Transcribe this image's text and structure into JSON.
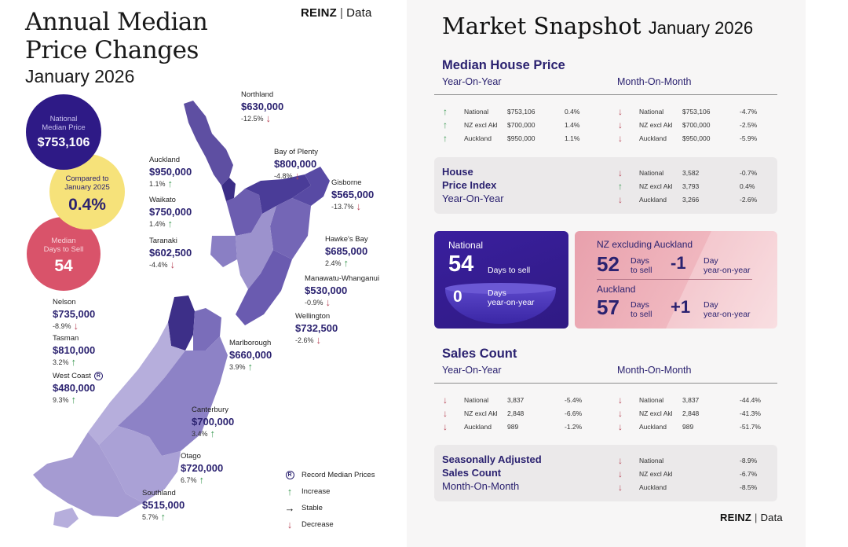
{
  "left": {
    "title_line1": "Annual Median",
    "title_line2": "Price Changes",
    "title_date": "January 2026",
    "brand": {
      "name": "REINZ",
      "sep": "|",
      "suffix": "Data"
    },
    "circles": {
      "national": {
        "label1": "National",
        "label2": "Median Price",
        "value": "$753,106",
        "color": "#2e1a86"
      },
      "compared": {
        "label1": "Compared to",
        "label2": "January 2025",
        "value": "0.4%",
        "color": "#f6e27a"
      },
      "days": {
        "label1": "Median",
        "label2": "Days to Sell",
        "value": "54",
        "color": "#d9536a"
      }
    },
    "regions": [
      {
        "name": "Northland",
        "price": "$630,000",
        "change": "-12.5%",
        "dir": "down"
      },
      {
        "name": "Bay of Plenty",
        "price": "$800,000",
        "change": "-4.8%",
        "dir": "down"
      },
      {
        "name": "Auckland",
        "price": "$950,000",
        "change": "1.1%",
        "dir": "up"
      },
      {
        "name": "Gisborne",
        "price": "$565,000",
        "change": "-13.7%",
        "dir": "down"
      },
      {
        "name": "Waikato",
        "price": "$750,000",
        "change": "1.4%",
        "dir": "up"
      },
      {
        "name": "Taranaki",
        "price": "$602,500",
        "change": "-4.4%",
        "dir": "down"
      },
      {
        "name": "Hawke's Bay",
        "price": "$685,000",
        "change": "2.4%",
        "dir": "up"
      },
      {
        "name": "Manawatu-Whanganui",
        "price": "$530,000",
        "change": "-0.9%",
        "dir": "down"
      },
      {
        "name": "Wellington",
        "price": "$732,500",
        "change": "-2.6%",
        "dir": "down"
      },
      {
        "name": "Nelson",
        "price": "$735,000",
        "change": "-8.9%",
        "dir": "down"
      },
      {
        "name": "Tasman",
        "price": "$810,000",
        "change": "3.2%",
        "dir": "up"
      },
      {
        "name": "West Coast",
        "price": "$480,000",
        "change": "9.3%",
        "dir": "up",
        "record": true
      },
      {
        "name": "Marlborough",
        "price": "$660,000",
        "change": "3.9%",
        "dir": "up"
      },
      {
        "name": "Canterbury",
        "price": "$700,000",
        "change": "3.4%",
        "dir": "up"
      },
      {
        "name": "Otago",
        "price": "$720,000",
        "change": "6.7%",
        "dir": "up"
      },
      {
        "name": "Southland",
        "price": "$515,000",
        "change": "5.7%",
        "dir": "up"
      }
    ],
    "legend": [
      {
        "icon": "record-icon",
        "symbol": "R",
        "label": "Record Median Prices"
      },
      {
        "icon": "increase-arrow-icon",
        "symbol": "↑",
        "label": "Increase"
      },
      {
        "icon": "stable-arrow-icon",
        "symbol": "→",
        "label": "Stable"
      },
      {
        "icon": "decrease-arrow-icon",
        "symbol": "↓",
        "label": "Decrease"
      }
    ]
  },
  "right": {
    "title": "Market Snapshot",
    "title_date": "January 2026",
    "median": {
      "heading": "Median House Price",
      "yoy_label": "Year-On-Year",
      "mom_label": "Month-On-Month",
      "yoy": [
        {
          "name": "National",
          "value": "$753,106",
          "pct": "0.4%",
          "dir": "up"
        },
        {
          "name": "NZ excl Akl",
          "value": "$700,000",
          "pct": "1.4%",
          "dir": "up"
        },
        {
          "name": "Auckland",
          "value": "$950,000",
          "pct": "1.1%",
          "dir": "up"
        }
      ],
      "mom": [
        {
          "name": "National",
          "value": "$753,106",
          "pct": "-4.7%",
          "dir": "down"
        },
        {
          "name": "NZ excl Akl",
          "value": "$700,000",
          "pct": "-2.5%",
          "dir": "down"
        },
        {
          "name": "Auckland",
          "value": "$950,000",
          "pct": "-5.9%",
          "dir": "down"
        }
      ]
    },
    "hpi": {
      "line1": "House",
      "line2": "Price Index",
      "line3": "Year-On-Year",
      "rows": [
        {
          "name": "National",
          "value": "3,582",
          "pct": "-0.7%",
          "dir": "down"
        },
        {
          "name": "NZ excl Akl",
          "value": "3,793",
          "pct": "0.4%",
          "dir": "up"
        },
        {
          "name": "Auckland",
          "value": "3,266",
          "pct": "-2.6%",
          "dir": "down"
        }
      ]
    },
    "days": {
      "national_label": "National",
      "national_days": "54",
      "days_to_sell": "Days to sell",
      "national_yoy": "0",
      "days_yoy_label1": "Days",
      "days_yoy_label2": "year-on-year",
      "nzx_label": "NZ excluding Auckland",
      "nzx_days": "52",
      "nzx_change": "-1",
      "akl_label": "Auckland",
      "akl_days": "57",
      "akl_change": "+1",
      "days_word": "Days",
      "to_sell": "to sell",
      "day_word": "Day",
      "yoy_word": "year-on-year"
    },
    "sales": {
      "heading": "Sales Count",
      "yoy_label": "Year-On-Year",
      "mom_label": "Month-On-Month",
      "yoy": [
        {
          "name": "National",
          "value": "3,837",
          "pct": "-5.4%",
          "dir": "down"
        },
        {
          "name": "NZ excl Akl",
          "value": "2,848",
          "pct": "-6.6%",
          "dir": "down"
        },
        {
          "name": "Auckland",
          "value": "989",
          "pct": "-1.2%",
          "dir": "down"
        }
      ],
      "mom": [
        {
          "name": "National",
          "value": "3,837",
          "pct": "-44.4%",
          "dir": "down"
        },
        {
          "name": "NZ excl Akl",
          "value": "2,848",
          "pct": "-41.3%",
          "dir": "down"
        },
        {
          "name": "Auckland",
          "value": "989",
          "pct": "-51.7%",
          "dir": "down"
        }
      ]
    },
    "seasonal": {
      "line1": "Seasonally Adjusted",
      "line2": "Sales Count",
      "line3": "Month-On-Month",
      "rows": [
        {
          "name": "National",
          "pct": "-8.9%",
          "dir": "down"
        },
        {
          "name": "NZ excl Akl",
          "pct": "-6.7%",
          "dir": "down"
        },
        {
          "name": "Auckland",
          "pct": "-8.5%",
          "dir": "down"
        }
      ]
    },
    "brand": {
      "name": "REINZ",
      "sep": "|",
      "suffix": "Data"
    }
  }
}
